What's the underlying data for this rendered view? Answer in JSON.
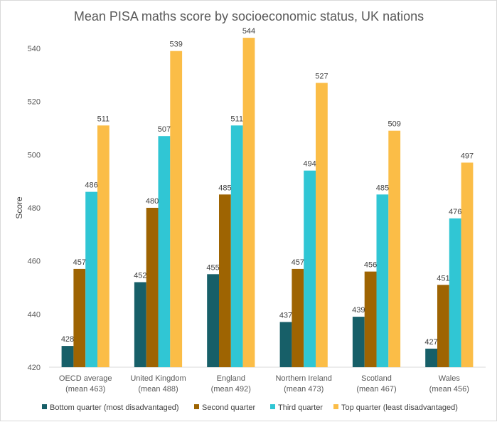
{
  "chart_data": {
    "type": "bar",
    "title": "Mean PISA maths score by socioeconomic status, UK nations",
    "ylabel": "Score",
    "xlabel": "",
    "ylim": [
      420,
      550
    ],
    "yticks": [
      420,
      440,
      460,
      480,
      500,
      520,
      540
    ],
    "grid": false,
    "legend_position": "bottom",
    "categories": [
      [
        "OECD average",
        "(mean 463)"
      ],
      [
        "United Kingdom",
        "(mean 488)"
      ],
      [
        "England",
        "(mean 492)"
      ],
      [
        "Northern Ireland",
        "(mean 473)"
      ],
      [
        "Scotland",
        "(mean 467)"
      ],
      [
        "Wales",
        "(mean 456)"
      ]
    ],
    "series": [
      {
        "name": "Bottom quarter (most disadvantaged)",
        "color": "#175f68",
        "values": [
          428,
          452,
          455,
          437,
          439,
          427
        ],
        "labels": [
          "428",
          "452",
          "455",
          "437",
          "439",
          "427"
        ]
      },
      {
        "name": "Second quarter",
        "color": "#9e6402",
        "values": [
          457,
          480,
          485,
          457,
          456,
          451
        ],
        "labels": [
          "457",
          "480",
          "485",
          "457",
          "456",
          "451"
        ]
      },
      {
        "name": "Third quarter",
        "color": "#30c6d4",
        "values": [
          486,
          507,
          511,
          494,
          485,
          476
        ],
        "labels": [
          "486",
          "507",
          "511",
          "494",
          "485",
          "476"
        ]
      },
      {
        "name": "Top quarter (least disadvantaged)",
        "color": "#fbbd47",
        "values": [
          511,
          539,
          544,
          527,
          509,
          497
        ],
        "labels": [
          "511",
          "539",
          "544",
          "527",
          "509",
          "497"
        ]
      }
    ]
  }
}
